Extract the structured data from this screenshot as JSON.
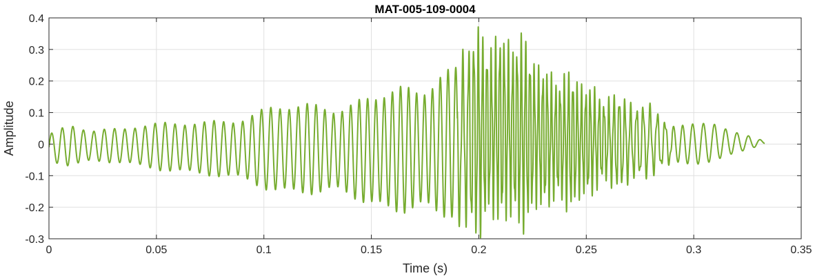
{
  "chart_data": {
    "type": "line",
    "title": "MAT-005-109-0004",
    "xlabel": "Time (s)",
    "ylabel": "Amplitude",
    "xlim": [
      0,
      0.35
    ],
    "ylim": [
      -0.3,
      0.4
    ],
    "x_ticks": [
      0,
      0.05,
      0.1,
      0.15,
      0.2,
      0.25,
      0.3,
      0.35
    ],
    "x_tick_labels": [
      "0",
      "0.05",
      "0.1",
      "0.15",
      "0.2",
      "0.25",
      "0.3",
      "0.35"
    ],
    "y_ticks": [
      -0.3,
      -0.2,
      -0.1,
      0,
      0.1,
      0.2,
      0.3,
      0.4
    ],
    "y_tick_labels": [
      "-0.3",
      "-0.2",
      "-0.1",
      "0",
      "0.1",
      "0.2",
      "0.3",
      "0.4"
    ],
    "grid": true,
    "series": [
      {
        "color": "#77ac30",
        "signal_end_s": 0.333,
        "envelope": {
          "t": [
            0,
            0.01,
            0.02,
            0.04,
            0.06,
            0.08,
            0.1,
            0.12,
            0.14,
            0.16,
            0.18,
            0.19,
            0.2,
            0.21,
            0.22,
            0.23,
            0.24,
            0.25,
            0.26,
            0.27,
            0.28,
            0.29,
            0.3,
            0.31,
            0.32,
            0.333
          ],
          "max": [
            0.03,
            0.07,
            0.05,
            0.07,
            0.07,
            0.09,
            0.12,
            0.14,
            0.15,
            0.18,
            0.24,
            0.29,
            0.33,
            0.36,
            0.31,
            0.25,
            0.21,
            0.19,
            0.16,
            0.13,
            0.12,
            0.08,
            0.07,
            0.07,
            0.04,
            0.01
          ],
          "min": [
            -0.05,
            -0.08,
            -0.06,
            -0.08,
            -0.09,
            -0.12,
            -0.15,
            -0.17,
            -0.19,
            -0.22,
            -0.26,
            -0.27,
            -0.26,
            -0.26,
            -0.24,
            -0.21,
            -0.19,
            -0.17,
            -0.14,
            -0.12,
            -0.1,
            -0.08,
            -0.07,
            -0.06,
            -0.03,
            0.0
          ]
        },
        "dominant_frequency_hz": {
          "t": [
            0,
            0.1,
            0.19,
            0.2,
            0.25,
            0.28,
            0.3,
            0.333
          ],
          "f": [
            200,
            230,
            280,
            500,
            500,
            300,
            200,
            180
          ]
        }
      }
    ]
  }
}
